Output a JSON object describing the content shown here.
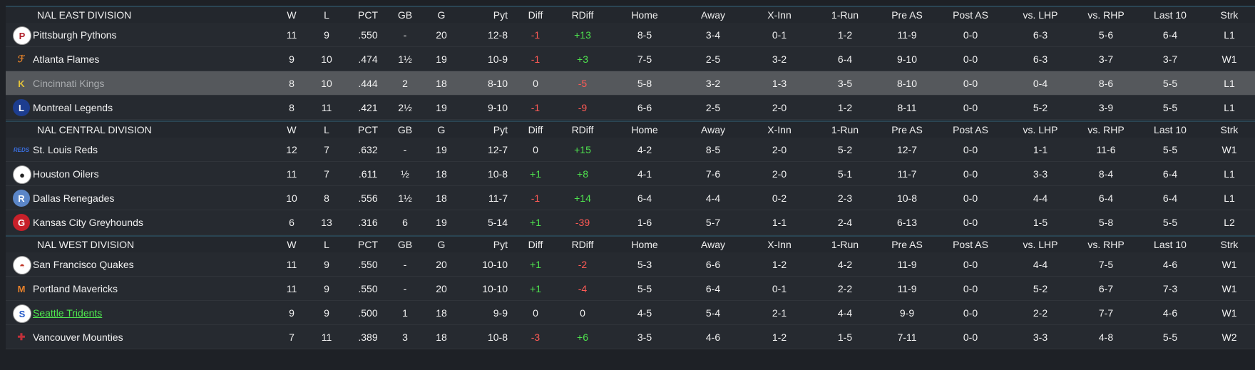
{
  "columns": [
    "W",
    "L",
    "PCT",
    "GB",
    "G",
    "Pyt",
    "Diff",
    "RDiff",
    "Home",
    "Away",
    "X-Inn",
    "1-Run",
    "Pre AS",
    "Post AS",
    "vs. LHP",
    "vs. RHP",
    "Last 10",
    "Strk"
  ],
  "divisions": [
    {
      "name": "NAL EAST DIVISION",
      "teams": [
        {
          "name": "Pittsburgh Pythons",
          "logo": "pythons-logo",
          "logo_text": "P",
          "logo_bg": "#ffffff",
          "logo_fg": "#b0202a",
          "values": [
            "11",
            "9",
            ".550",
            "-",
            "20",
            "12-8",
            "-1",
            "+13",
            "8-5",
            "3-4",
            "0-1",
            "1-2",
            "11-9",
            "0-0",
            "6-3",
            "5-6",
            "6-4",
            "L1"
          ]
        },
        {
          "name": "Atlanta Flames",
          "logo": "flames-logo",
          "logo_text": "ℱ",
          "logo_bg": "transparent",
          "logo_fg": "#e0802a",
          "values": [
            "9",
            "10",
            ".474",
            "1½",
            "19",
            "10-9",
            "-1",
            "+3",
            "7-5",
            "2-5",
            "3-2",
            "6-4",
            "9-10",
            "0-0",
            "6-3",
            "3-7",
            "3-7",
            "W1"
          ]
        },
        {
          "name": "Cincinnati Kings",
          "logo": "kings-logo",
          "logo_text": "K",
          "logo_bg": "transparent",
          "logo_fg": "#e2c23a",
          "values": [
            "8",
            "10",
            ".444",
            "2",
            "18",
            "8-10",
            "0",
            "-5",
            "5-8",
            "3-2",
            "1-3",
            "3-5",
            "8-10",
            "0-0",
            "0-4",
            "8-6",
            "5-5",
            "L1"
          ]
        },
        {
          "name": "Montreal Legends",
          "logo": "legends-logo",
          "logo_text": "L",
          "logo_bg": "#1d3d8f",
          "logo_fg": "#ffffff",
          "values": [
            "8",
            "11",
            ".421",
            "2½",
            "19",
            "9-10",
            "-1",
            "-9",
            "6-6",
            "2-5",
            "2-0",
            "1-2",
            "8-11",
            "0-0",
            "5-2",
            "3-9",
            "5-5",
            "L1"
          ]
        }
      ]
    },
    {
      "name": "NAL CENTRAL DIVISION",
      "teams": [
        {
          "name": "St. Louis Reds",
          "logo": "reds-logo",
          "logo_text": "REDS",
          "logo_bg": "transparent",
          "logo_fg": "#3a6fe0",
          "values": [
            "12",
            "7",
            ".632",
            "-",
            "19",
            "12-7",
            "0",
            "+15",
            "4-2",
            "8-5",
            "2-0",
            "5-2",
            "12-7",
            "0-0",
            "1-1",
            "11-6",
            "5-5",
            "W1"
          ]
        },
        {
          "name": "Houston Oilers",
          "logo": "oilers-logo",
          "logo_text": "●",
          "logo_bg": "#ffffff",
          "logo_fg": "#222222",
          "values": [
            "11",
            "7",
            ".611",
            "½",
            "18",
            "10-8",
            "+1",
            "+8",
            "4-1",
            "7-6",
            "2-0",
            "5-1",
            "11-7",
            "0-0",
            "3-3",
            "8-4",
            "6-4",
            "L1"
          ]
        },
        {
          "name": "Dallas Renegades",
          "logo": "renegades-logo",
          "logo_text": "R",
          "logo_bg": "#5b86c8",
          "logo_fg": "#ffffff",
          "values": [
            "10",
            "8",
            ".556",
            "1½",
            "18",
            "11-7",
            "-1",
            "+14",
            "6-4",
            "4-4",
            "0-2",
            "2-3",
            "10-8",
            "0-0",
            "4-4",
            "6-4",
            "6-4",
            "L1"
          ]
        },
        {
          "name": "Kansas City Greyhounds",
          "logo": "greyhounds-logo",
          "logo_text": "G",
          "logo_bg": "#c8202a",
          "logo_fg": "#ffffff",
          "values": [
            "6",
            "13",
            ".316",
            "6",
            "19",
            "5-14",
            "+1",
            "-39",
            "1-6",
            "5-7",
            "1-1",
            "2-4",
            "6-13",
            "0-0",
            "1-5",
            "5-8",
            "5-5",
            "L2"
          ]
        }
      ]
    },
    {
      "name": "NAL WEST DIVISION",
      "teams": [
        {
          "name": "San Francisco Quakes",
          "logo": "quakes-logo",
          "logo_text": "◓",
          "logo_bg": "#ffffff",
          "logo_fg": "#c0392b",
          "values": [
            "11",
            "9",
            ".550",
            "-",
            "20",
            "10-10",
            "+1",
            "-2",
            "5-3",
            "6-6",
            "1-2",
            "4-2",
            "11-9",
            "0-0",
            "4-4",
            "7-5",
            "4-6",
            "W1"
          ]
        },
        {
          "name": "Portland Mavericks",
          "logo": "mavericks-logo",
          "logo_text": "M",
          "logo_bg": "transparent",
          "logo_fg": "#e8812a",
          "values": [
            "11",
            "9",
            ".550",
            "-",
            "20",
            "10-10",
            "+1",
            "-4",
            "5-5",
            "6-4",
            "0-1",
            "2-2",
            "11-9",
            "0-0",
            "5-2",
            "6-7",
            "7-3",
            "W1"
          ]
        },
        {
          "name": "Seattle Tridents",
          "logo": "tridents-logo",
          "logo_text": "S",
          "logo_bg": "#ffffff",
          "logo_fg": "#1f55c8",
          "link": true,
          "values": [
            "9",
            "9",
            ".500",
            "1",
            "18",
            "9-9",
            "0",
            "0",
            "4-5",
            "5-4",
            "2-1",
            "4-4",
            "9-9",
            "0-0",
            "2-2",
            "7-7",
            "4-6",
            "W1"
          ]
        },
        {
          "name": "Vancouver Mounties",
          "logo": "mounties-logo",
          "logo_text": "✚",
          "logo_bg": "transparent",
          "logo_fg": "#c0303a",
          "values": [
            "7",
            "11",
            ".389",
            "3",
            "18",
            "10-8",
            "-3",
            "+6",
            "3-5",
            "4-6",
            "1-2",
            "1-5",
            "7-11",
            "0-0",
            "3-3",
            "4-8",
            "5-5",
            "W2"
          ]
        }
      ]
    }
  ],
  "selected_team": "Cincinnati Kings"
}
